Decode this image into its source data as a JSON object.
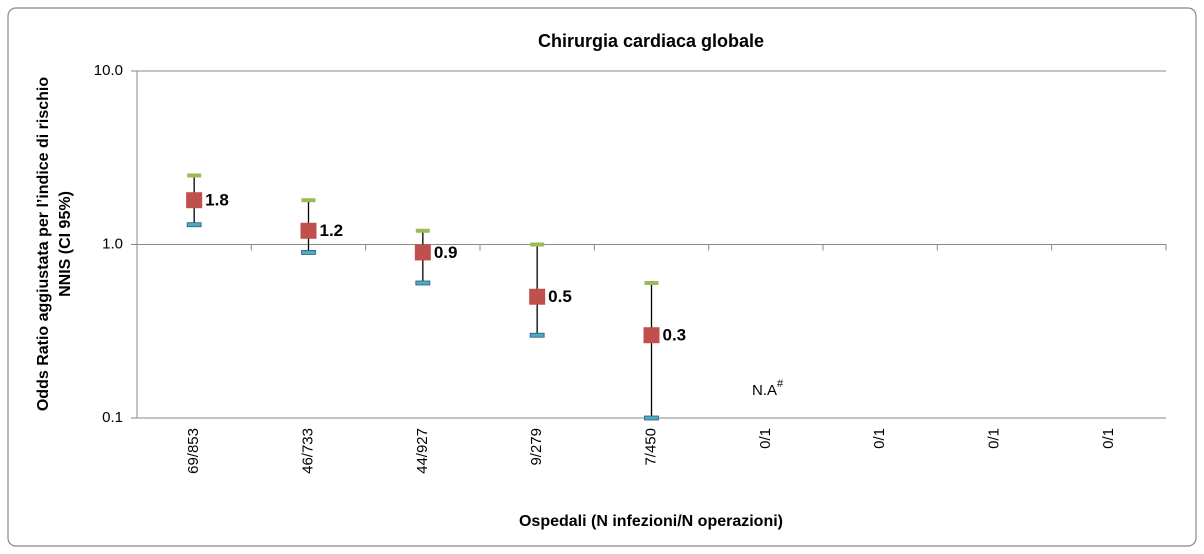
{
  "chart_data": {
    "type": "errorbar",
    "title": "Chirurgia cardiaca globale",
    "x_label": "Ospedali (N infezioni/N operazioni)",
    "y_label": [
      "Odds Ratio aggiustata per l’indice di rischio",
      "NNIS (CI 95%)"
    ],
    "categories": [
      "69/853",
      "46/733",
      "44/927",
      "9/279",
      "7/450",
      "0/1",
      "0/1",
      "0/1",
      "0/1"
    ],
    "values": [
      1.8,
      1.2,
      0.9,
      0.5,
      0.3,
      null,
      null,
      null,
      null
    ],
    "upper": [
      2.5,
      1.8,
      1.2,
      1.0,
      0.6,
      null,
      null,
      null,
      null
    ],
    "lower": [
      1.3,
      0.9,
      0.6,
      0.3,
      0.1,
      null,
      null,
      null,
      null
    ],
    "color": "#c0504d",
    "upper_color": "#9bbb59",
    "lower_color": "#4bacc6",
    "ylim": [
      0.1,
      10
    ],
    "yticks": [
      0.1,
      {
        "value": 1,
        "label": "1.0"
      },
      {
        "value": 10,
        "label": "10.0"
      }
    ],
    "log_y": true,
    "grid": true,
    "annotation": {
      "text": "N.A",
      "sup": "#"
    }
  }
}
